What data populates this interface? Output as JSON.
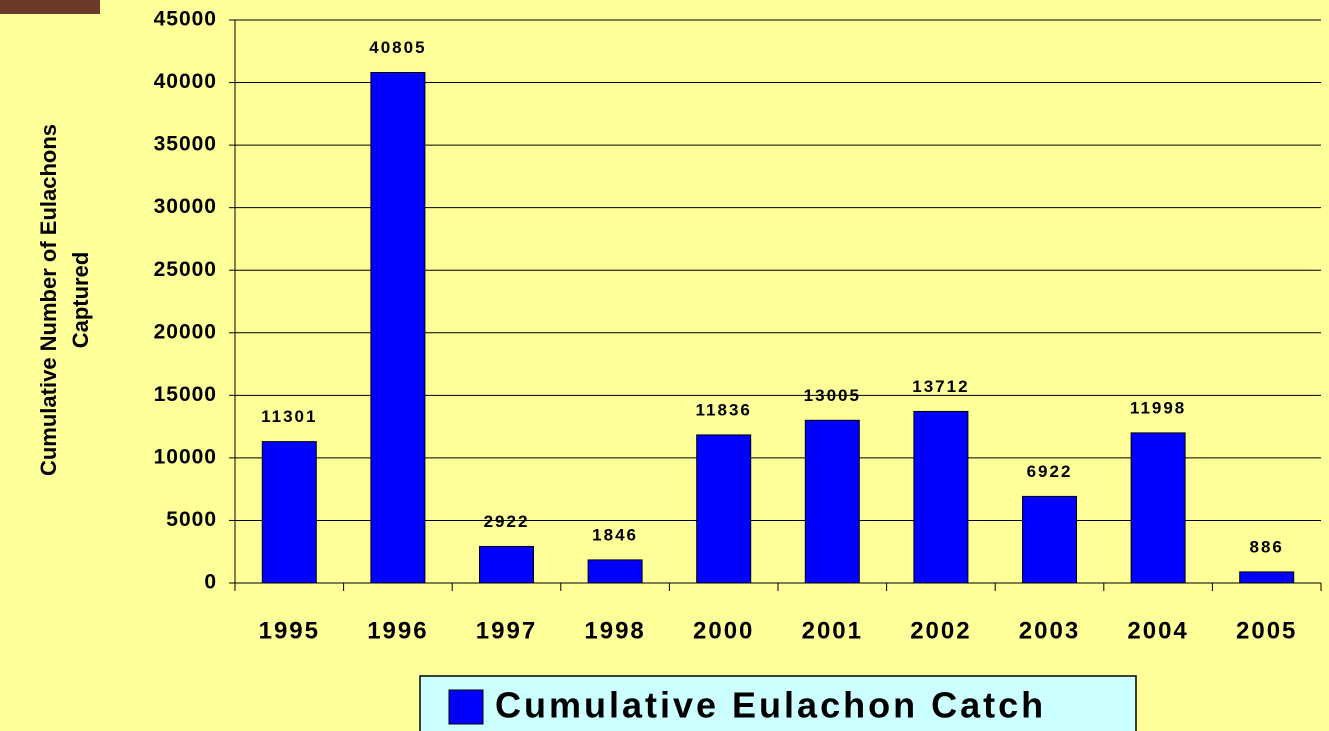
{
  "chart_data": {
    "type": "bar",
    "y_label": "Cumulative Number of Eulachons Captured",
    "categories": [
      "1995",
      "1996",
      "1997",
      "1998",
      "2000",
      "2001",
      "2002",
      "2003",
      "2004",
      "2005"
    ],
    "series": [
      {
        "name": "Cumulative Eulachon Catch",
        "color": "#0000ff",
        "values": [
          11301,
          40805,
          2922,
          1846,
          11836,
          13005,
          13712,
          6922,
          11998,
          886
        ]
      }
    ],
    "ylim": [
      0,
      45000
    ],
    "yticks": [
      0,
      5000,
      10000,
      15000,
      20000,
      25000,
      30000,
      35000,
      40000,
      45000
    ],
    "grid": true,
    "legend": "bottom"
  }
}
